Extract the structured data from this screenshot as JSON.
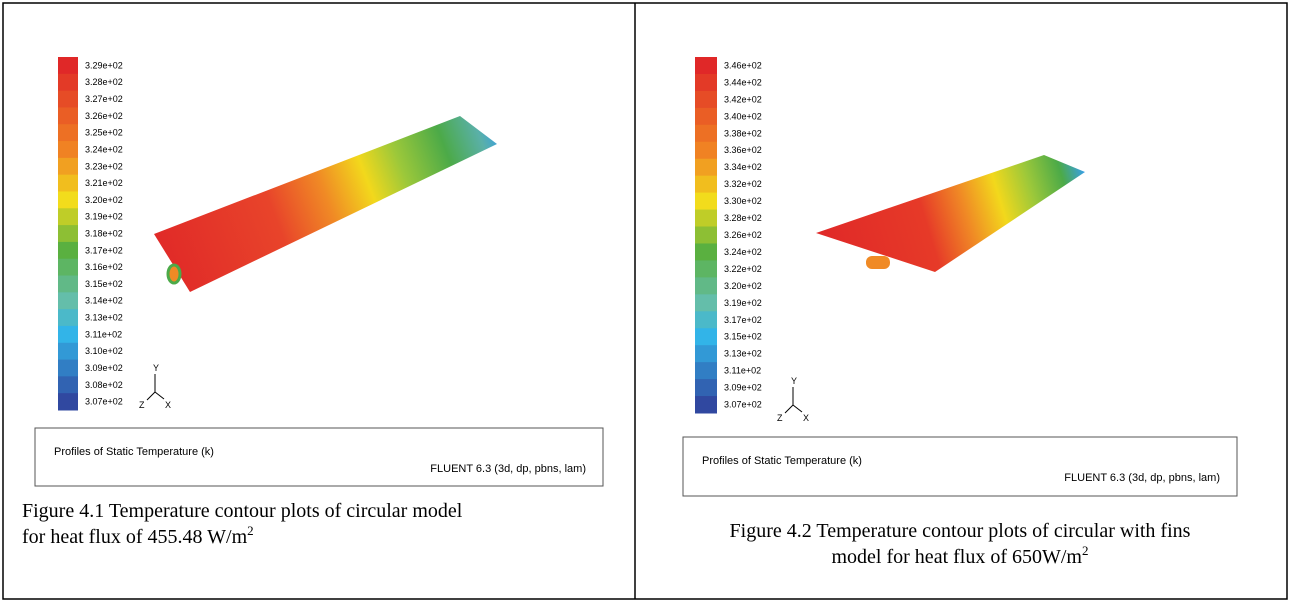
{
  "panels": [
    {
      "legend_labels": [
        "3.29e+02",
        "3.28e+02",
        "3.27e+02",
        "3.26e+02",
        "3.25e+02",
        "3.24e+02",
        "3.23e+02",
        "3.21e+02",
        "3.20e+02",
        "3.19e+02",
        "3.18e+02",
        "3.17e+02",
        "3.16e+02",
        "3.15e+02",
        "3.14e+02",
        "3.13e+02",
        "3.11e+02",
        "3.10e+02",
        "3.09e+02",
        "3.08e+02",
        "3.07e+02"
      ],
      "axes": {
        "y": "Y",
        "z": "Z",
        "x": "X"
      },
      "footer": {
        "title": "Profiles of Static Temperature (k)",
        "solver": "FLUENT 6.3 (3d, dp, pbns, lam)"
      },
      "caption": {
        "line1": "Figure 4.1 Temperature contour plots of circular model",
        "line2": "for heat flux of 455.48 W/m",
        "sup": "2"
      }
    },
    {
      "legend_labels": [
        "3.46e+02",
        "3.44e+02",
        "3.42e+02",
        "3.40e+02",
        "3.38e+02",
        "3.36e+02",
        "3.34e+02",
        "3.32e+02",
        "3.30e+02",
        "3.28e+02",
        "3.26e+02",
        "3.24e+02",
        "3.22e+02",
        "3.20e+02",
        "3.19e+02",
        "3.17e+02",
        "3.15e+02",
        "3.13e+02",
        "3.11e+02",
        "3.09e+02",
        "3.07e+02"
      ],
      "axes": {
        "y": "Y",
        "z": "Z",
        "x": "X"
      },
      "footer": {
        "title": "Profiles of Static Temperature (k)",
        "solver": "FLUENT 6.3 (3d, dp, pbns, lam)"
      },
      "caption": {
        "line1": "Figure 4.2 Temperature contour plots of circular with fins",
        "line2": "model for heat flux of 650W/m",
        "sup": "2"
      }
    }
  ]
}
